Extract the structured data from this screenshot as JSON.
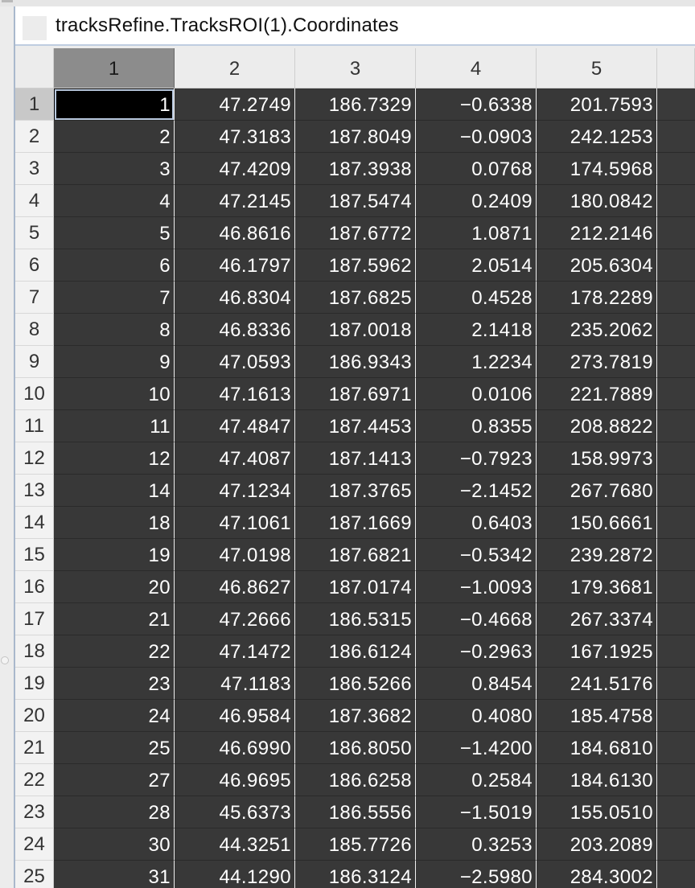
{
  "window": {
    "title": "tracksRefine.TracksROI(1).Coordinates"
  },
  "columns": [
    "1",
    "2",
    "3",
    "4",
    "5"
  ],
  "selected_column": 0,
  "active_row": 0,
  "rows": [
    {
      "num": "1",
      "cells": [
        "1",
        "47.2749",
        "186.7329",
        "−0.6338",
        "201.7593"
      ]
    },
    {
      "num": "2",
      "cells": [
        "2",
        "47.3183",
        "187.8049",
        "−0.0903",
        "242.1253"
      ]
    },
    {
      "num": "3",
      "cells": [
        "3",
        "47.4209",
        "187.3938",
        "0.0768",
        "174.5968"
      ]
    },
    {
      "num": "4",
      "cells": [
        "4",
        "47.2145",
        "187.5474",
        "0.2409",
        "180.0842"
      ]
    },
    {
      "num": "5",
      "cells": [
        "5",
        "46.8616",
        "187.6772",
        "1.0871",
        "212.2146"
      ]
    },
    {
      "num": "6",
      "cells": [
        "6",
        "46.1797",
        "187.5962",
        "2.0514",
        "205.6304"
      ]
    },
    {
      "num": "7",
      "cells": [
        "7",
        "46.8304",
        "187.6825",
        "0.4528",
        "178.2289"
      ]
    },
    {
      "num": "8",
      "cells": [
        "8",
        "46.8336",
        "187.0018",
        "2.1418",
        "235.2062"
      ]
    },
    {
      "num": "9",
      "cells": [
        "9",
        "47.0593",
        "186.9343",
        "1.2234",
        "273.7819"
      ]
    },
    {
      "num": "10",
      "cells": [
        "10",
        "47.1613",
        "187.6971",
        "0.0106",
        "221.7889"
      ]
    },
    {
      "num": "11",
      "cells": [
        "11",
        "47.4847",
        "187.4453",
        "0.8355",
        "208.8822"
      ]
    },
    {
      "num": "12",
      "cells": [
        "12",
        "47.4087",
        "187.1413",
        "−0.7923",
        "158.9973"
      ]
    },
    {
      "num": "13",
      "cells": [
        "14",
        "47.1234",
        "187.3765",
        "−2.1452",
        "267.7680"
      ]
    },
    {
      "num": "14",
      "cells": [
        "18",
        "47.1061",
        "187.1669",
        "0.6403",
        "150.6661"
      ]
    },
    {
      "num": "15",
      "cells": [
        "19",
        "47.0198",
        "187.6821",
        "−0.5342",
        "239.2872"
      ]
    },
    {
      "num": "16",
      "cells": [
        "20",
        "46.8627",
        "187.0174",
        "−1.0093",
        "179.3681"
      ]
    },
    {
      "num": "17",
      "cells": [
        "21",
        "47.2666",
        "186.5315",
        "−0.4668",
        "267.3374"
      ]
    },
    {
      "num": "18",
      "cells": [
        "22",
        "47.1472",
        "186.6124",
        "−0.2963",
        "167.1925"
      ]
    },
    {
      "num": "19",
      "cells": [
        "23",
        "47.1183",
        "186.5266",
        "0.8454",
        "241.5176"
      ]
    },
    {
      "num": "20",
      "cells": [
        "24",
        "46.9584",
        "187.3682",
        "0.4080",
        "185.4758"
      ]
    },
    {
      "num": "21",
      "cells": [
        "25",
        "46.6990",
        "186.8050",
        "−1.4200",
        "184.6810"
      ]
    },
    {
      "num": "22",
      "cells": [
        "27",
        "46.9695",
        "186.6258",
        "0.2584",
        "184.6130"
      ]
    },
    {
      "num": "23",
      "cells": [
        "28",
        "45.6373",
        "186.5556",
        "−1.5019",
        "155.0510"
      ]
    },
    {
      "num": "24",
      "cells": [
        "30",
        "44.3251",
        "185.7726",
        "0.3253",
        "203.2089"
      ]
    },
    {
      "num": "25",
      "cells": [
        "31",
        "44.1290",
        "186.3124",
        "−2.5980",
        "284.3002"
      ]
    }
  ]
}
